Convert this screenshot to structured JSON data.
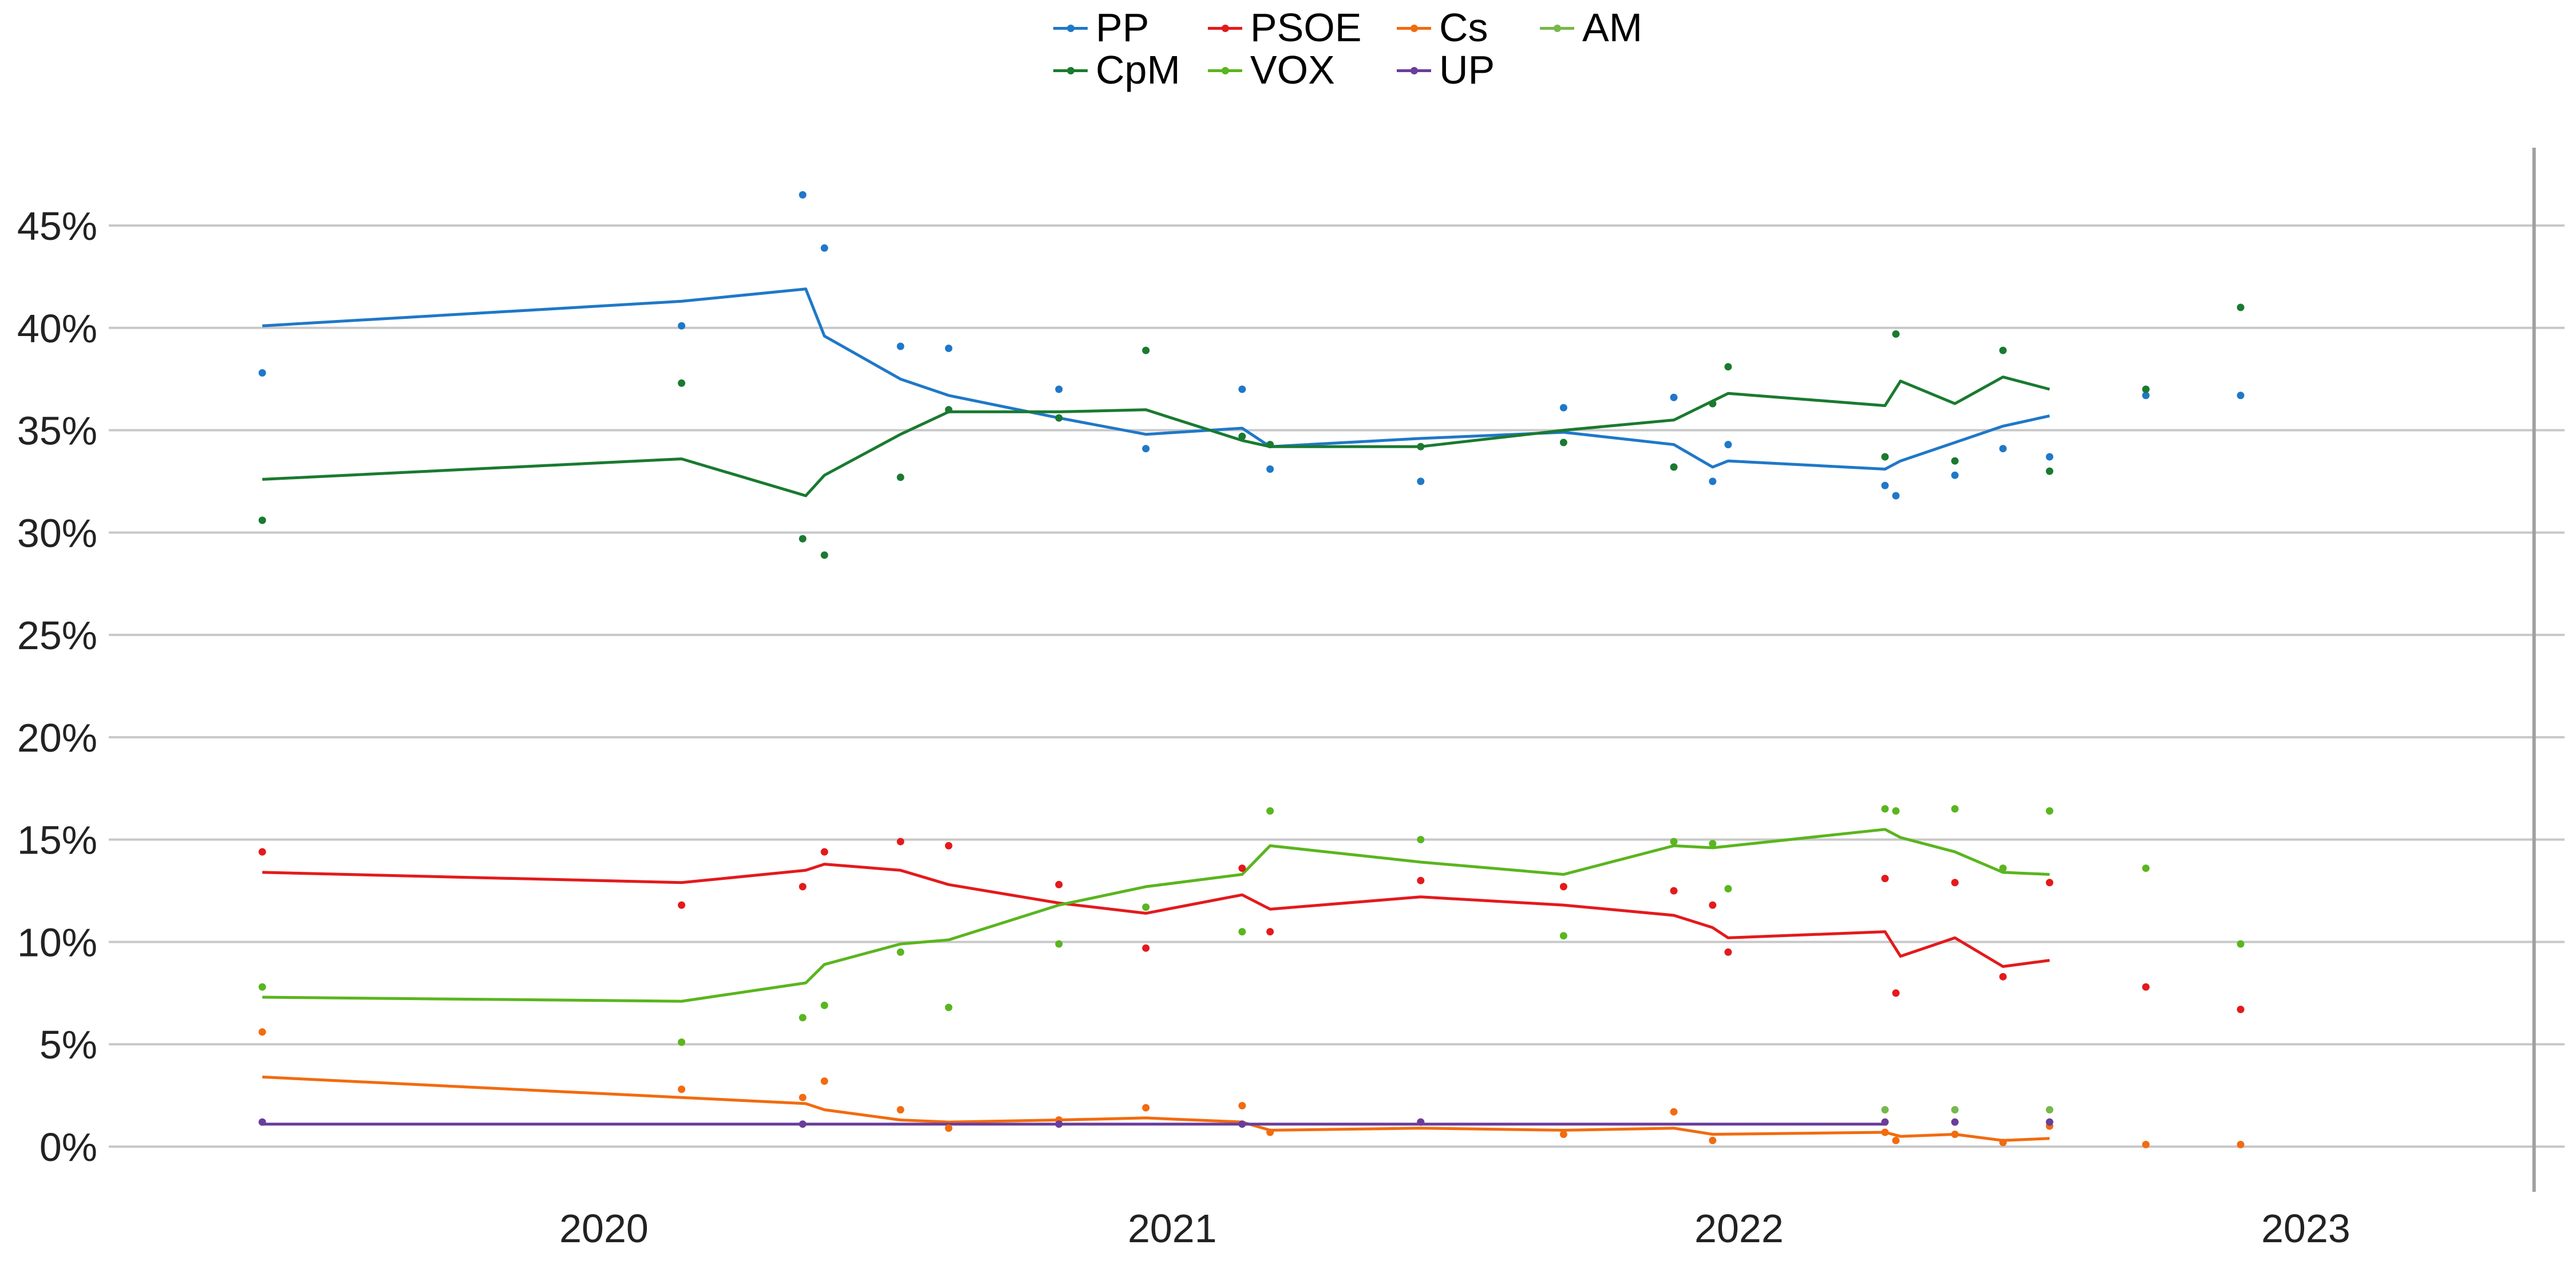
{
  "chart_data": {
    "type": "line",
    "title": "",
    "xlabel": "",
    "ylabel": "",
    "ylim": [
      -0.02,
      0.48
    ],
    "yticks": [
      0,
      0.05,
      0.1,
      0.15,
      0.2,
      0.25,
      0.3,
      0.35,
      0.4,
      0.45
    ],
    "ytick_labels": [
      "0%",
      "5%",
      "10%",
      "15%",
      "20%",
      "25%",
      "30%",
      "35%",
      "40%",
      "45%"
    ],
    "xlim": [
      "2019-04-15",
      "2023-08-15"
    ],
    "xticks": [
      "2020-01-01",
      "2021-01-01",
      "2022-01-01",
      "2023-01-01"
    ],
    "xtick_labels": [
      "2020",
      "2021",
      "2022",
      "2023"
    ],
    "grid": "horizontal",
    "legend_position": "top-center",
    "election_marker_date": "2023-05-28",
    "series": [
      {
        "name": "PP",
        "color": "#1f78c8",
        "line": [
          [
            "2019-05-26",
            0.401
          ],
          [
            "2020-02-20",
            0.413
          ],
          [
            "2020-05-10",
            0.419
          ],
          [
            "2020-05-22",
            0.396
          ],
          [
            "2020-07-10",
            0.375
          ],
          [
            "2020-08-10",
            0.367
          ],
          [
            "2020-10-20",
            0.356
          ],
          [
            "2020-12-15",
            0.348
          ],
          [
            "2021-02-15",
            0.351
          ],
          [
            "2021-03-05",
            0.342
          ],
          [
            "2021-06-10",
            0.346
          ],
          [
            "2021-09-10",
            0.349
          ],
          [
            "2021-11-20",
            0.343
          ],
          [
            "2021-12-15",
            0.332
          ],
          [
            "2021-12-25",
            0.335
          ],
          [
            "2022-04-05",
            0.331
          ],
          [
            "2022-04-15",
            0.335
          ],
          [
            "2022-05-20",
            0.344
          ],
          [
            "2022-06-20",
            0.352
          ],
          [
            "2022-07-20",
            0.357
          ]
        ],
        "points": [
          [
            "2019-05-26",
            0.378
          ],
          [
            "2020-02-20",
            0.401
          ],
          [
            "2020-05-08",
            0.465
          ],
          [
            "2020-05-22",
            0.439
          ],
          [
            "2020-07-10",
            0.391
          ],
          [
            "2020-08-10",
            0.39
          ],
          [
            "2020-10-20",
            0.37
          ],
          [
            "2020-12-15",
            0.341
          ],
          [
            "2021-02-15",
            0.37
          ],
          [
            "2021-03-05",
            0.331
          ],
          [
            "2021-06-10",
            0.325
          ],
          [
            "2021-09-10",
            0.361
          ],
          [
            "2021-11-20",
            0.366
          ],
          [
            "2021-12-15",
            0.325
          ],
          [
            "2021-12-25",
            0.343
          ],
          [
            "2022-04-05",
            0.323
          ],
          [
            "2022-04-12",
            0.318
          ],
          [
            "2022-05-20",
            0.328
          ],
          [
            "2022-06-20",
            0.341
          ],
          [
            "2022-07-20",
            0.337
          ],
          [
            "2022-09-20",
            0.367
          ],
          [
            "2022-11-20",
            0.367
          ]
        ]
      },
      {
        "name": "CpM",
        "color": "#1a7a30",
        "line": [
          [
            "2019-05-26",
            0.326
          ],
          [
            "2020-02-20",
            0.336
          ],
          [
            "2020-05-10",
            0.318
          ],
          [
            "2020-05-22",
            0.328
          ],
          [
            "2020-07-10",
            0.348
          ],
          [
            "2020-08-10",
            0.359
          ],
          [
            "2020-10-20",
            0.359
          ],
          [
            "2020-12-15",
            0.36
          ],
          [
            "2021-02-15",
            0.345
          ],
          [
            "2021-03-05",
            0.342
          ],
          [
            "2021-06-10",
            0.342
          ],
          [
            "2021-09-10",
            0.35
          ],
          [
            "2021-11-20",
            0.355
          ],
          [
            "2021-12-25",
            0.368
          ],
          [
            "2022-04-05",
            0.362
          ],
          [
            "2022-04-15",
            0.374
          ],
          [
            "2022-05-20",
            0.363
          ],
          [
            "2022-06-20",
            0.376
          ],
          [
            "2022-07-20",
            0.37
          ]
        ],
        "points": [
          [
            "2019-05-26",
            0.306
          ],
          [
            "2020-02-20",
            0.373
          ],
          [
            "2020-05-08",
            0.297
          ],
          [
            "2020-05-22",
            0.289
          ],
          [
            "2020-07-10",
            0.327
          ],
          [
            "2020-08-10",
            0.36
          ],
          [
            "2020-10-20",
            0.356
          ],
          [
            "2020-12-15",
            0.389
          ],
          [
            "2021-02-15",
            0.347
          ],
          [
            "2021-03-05",
            0.343
          ],
          [
            "2021-06-10",
            0.342
          ],
          [
            "2021-09-10",
            0.344
          ],
          [
            "2021-11-20",
            0.332
          ],
          [
            "2021-12-15",
            0.363
          ],
          [
            "2021-12-25",
            0.381
          ],
          [
            "2022-04-05",
            0.337
          ],
          [
            "2022-04-12",
            0.397
          ],
          [
            "2022-05-20",
            0.335
          ],
          [
            "2022-06-20",
            0.389
          ],
          [
            "2022-07-20",
            0.33
          ],
          [
            "2022-09-20",
            0.37
          ],
          [
            "2022-11-20",
            0.41
          ]
        ]
      },
      {
        "name": "PSOE",
        "color": "#e31a1c",
        "line": [
          [
            "2019-05-26",
            0.134
          ],
          [
            "2020-02-20",
            0.129
          ],
          [
            "2020-05-10",
            0.135
          ],
          [
            "2020-05-22",
            0.138
          ],
          [
            "2020-07-10",
            0.135
          ],
          [
            "2020-08-10",
            0.128
          ],
          [
            "2020-10-20",
            0.119
          ],
          [
            "2020-12-15",
            0.114
          ],
          [
            "2021-02-15",
            0.123
          ],
          [
            "2021-03-05",
            0.116
          ],
          [
            "2021-06-10",
            0.122
          ],
          [
            "2021-09-10",
            0.118
          ],
          [
            "2021-11-20",
            0.113
          ],
          [
            "2021-12-15",
            0.107
          ],
          [
            "2021-12-25",
            0.102
          ],
          [
            "2022-04-05",
            0.105
          ],
          [
            "2022-04-15",
            0.093
          ],
          [
            "2022-05-20",
            0.102
          ],
          [
            "2022-06-20",
            0.088
          ],
          [
            "2022-07-20",
            0.091
          ]
        ],
        "points": [
          [
            "2019-05-26",
            0.144
          ],
          [
            "2020-02-20",
            0.118
          ],
          [
            "2020-05-08",
            0.127
          ],
          [
            "2020-05-22",
            0.144
          ],
          [
            "2020-07-10",
            0.149
          ],
          [
            "2020-08-10",
            0.147
          ],
          [
            "2020-10-20",
            0.128
          ],
          [
            "2020-12-15",
            0.097
          ],
          [
            "2021-02-15",
            0.136
          ],
          [
            "2021-03-05",
            0.105
          ],
          [
            "2021-06-10",
            0.13
          ],
          [
            "2021-09-10",
            0.127
          ],
          [
            "2021-11-20",
            0.125
          ],
          [
            "2021-12-15",
            0.118
          ],
          [
            "2021-12-25",
            0.095
          ],
          [
            "2022-04-05",
            0.131
          ],
          [
            "2022-04-12",
            0.075
          ],
          [
            "2022-05-20",
            0.129
          ],
          [
            "2022-06-20",
            0.083
          ],
          [
            "2022-07-20",
            0.129
          ],
          [
            "2022-09-20",
            0.078
          ],
          [
            "2022-11-20",
            0.067
          ]
        ]
      },
      {
        "name": "VOX",
        "color": "#5ab51e",
        "line": [
          [
            "2019-05-26",
            0.073
          ],
          [
            "2020-02-20",
            0.071
          ],
          [
            "2020-05-10",
            0.08
          ],
          [
            "2020-05-22",
            0.089
          ],
          [
            "2020-07-10",
            0.099
          ],
          [
            "2020-08-10",
            0.101
          ],
          [
            "2020-10-20",
            0.118
          ],
          [
            "2020-12-15",
            0.127
          ],
          [
            "2021-02-15",
            0.133
          ],
          [
            "2021-03-05",
            0.147
          ],
          [
            "2021-06-10",
            0.139
          ],
          [
            "2021-09-10",
            0.133
          ],
          [
            "2021-11-20",
            0.147
          ],
          [
            "2021-12-15",
            0.146
          ],
          [
            "2022-04-05",
            0.155
          ],
          [
            "2022-04-15",
            0.151
          ],
          [
            "2022-05-20",
            0.144
          ],
          [
            "2022-06-20",
            0.134
          ],
          [
            "2022-07-20",
            0.133
          ]
        ],
        "points": [
          [
            "2019-05-26",
            0.078
          ],
          [
            "2020-02-20",
            0.051
          ],
          [
            "2020-05-08",
            0.063
          ],
          [
            "2020-05-22",
            0.069
          ],
          [
            "2020-07-10",
            0.095
          ],
          [
            "2020-08-10",
            0.068
          ],
          [
            "2020-10-20",
            0.099
          ],
          [
            "2020-12-15",
            0.117
          ],
          [
            "2021-02-15",
            0.105
          ],
          [
            "2021-03-05",
            0.164
          ],
          [
            "2021-06-10",
            0.15
          ],
          [
            "2021-09-10",
            0.103
          ],
          [
            "2021-11-20",
            0.149
          ],
          [
            "2021-12-15",
            0.148
          ],
          [
            "2021-12-25",
            0.126
          ],
          [
            "2022-04-05",
            0.165
          ],
          [
            "2022-04-12",
            0.164
          ],
          [
            "2022-05-20",
            0.165
          ],
          [
            "2022-06-20",
            0.136
          ],
          [
            "2022-07-20",
            0.164
          ],
          [
            "2022-09-20",
            0.136
          ],
          [
            "2022-11-20",
            0.099
          ]
        ]
      },
      {
        "name": "Cs",
        "color": "#f26b0f",
        "line": [
          [
            "2019-05-26",
            0.034
          ],
          [
            "2020-02-20",
            0.024
          ],
          [
            "2020-05-10",
            0.021
          ],
          [
            "2020-05-22",
            0.018
          ],
          [
            "2020-07-10",
            0.013
          ],
          [
            "2020-08-10",
            0.012
          ],
          [
            "2020-10-20",
            0.013
          ],
          [
            "2020-12-15",
            0.014
          ],
          [
            "2021-02-15",
            0.012
          ],
          [
            "2021-03-05",
            0.008
          ],
          [
            "2021-06-10",
            0.009
          ],
          [
            "2021-09-10",
            0.008
          ],
          [
            "2021-11-20",
            0.009
          ],
          [
            "2021-12-15",
            0.006
          ],
          [
            "2022-04-05",
            0.007
          ],
          [
            "2022-04-15",
            0.005
          ],
          [
            "2022-05-20",
            0.006
          ],
          [
            "2022-06-20",
            0.003
          ],
          [
            "2022-07-20",
            0.004
          ]
        ],
        "points": [
          [
            "2019-05-26",
            0.056
          ],
          [
            "2020-02-20",
            0.028
          ],
          [
            "2020-05-08",
            0.024
          ],
          [
            "2020-05-22",
            0.032
          ],
          [
            "2020-07-10",
            0.018
          ],
          [
            "2020-08-10",
            0.009
          ],
          [
            "2020-10-20",
            0.013
          ],
          [
            "2020-12-15",
            0.019
          ],
          [
            "2021-02-15",
            0.02
          ],
          [
            "2021-03-05",
            0.007
          ],
          [
            "2021-06-10",
            0.012
          ],
          [
            "2021-09-10",
            0.006
          ],
          [
            "2021-11-20",
            0.017
          ],
          [
            "2021-12-15",
            0.003
          ],
          [
            "2022-04-05",
            0.007
          ],
          [
            "2022-04-12",
            0.003
          ],
          [
            "2022-05-20",
            0.006
          ],
          [
            "2022-06-20",
            0.002
          ],
          [
            "2022-07-20",
            0.01
          ],
          [
            "2022-09-20",
            0.001
          ],
          [
            "2022-11-20",
            0.001
          ]
        ]
      },
      {
        "name": "UP",
        "color": "#6a3d9a",
        "line": [
          [
            "2019-05-26",
            0.011
          ],
          [
            "2022-04-05",
            0.011
          ]
        ],
        "points": [
          [
            "2019-05-26",
            0.012
          ],
          [
            "2020-05-08",
            0.011
          ],
          [
            "2020-10-20",
            0.011
          ],
          [
            "2021-02-15",
            0.011
          ],
          [
            "2021-06-10",
            0.012
          ],
          [
            "2022-04-05",
            0.012
          ],
          [
            "2022-05-20",
            0.012
          ],
          [
            "2022-07-20",
            0.012
          ]
        ]
      },
      {
        "name": "AM",
        "color": "#77b84a",
        "line": [],
        "points": [
          [
            "2022-04-05",
            0.018
          ],
          [
            "2022-05-20",
            0.018
          ],
          [
            "2022-07-20",
            0.018
          ]
        ]
      }
    ]
  }
}
